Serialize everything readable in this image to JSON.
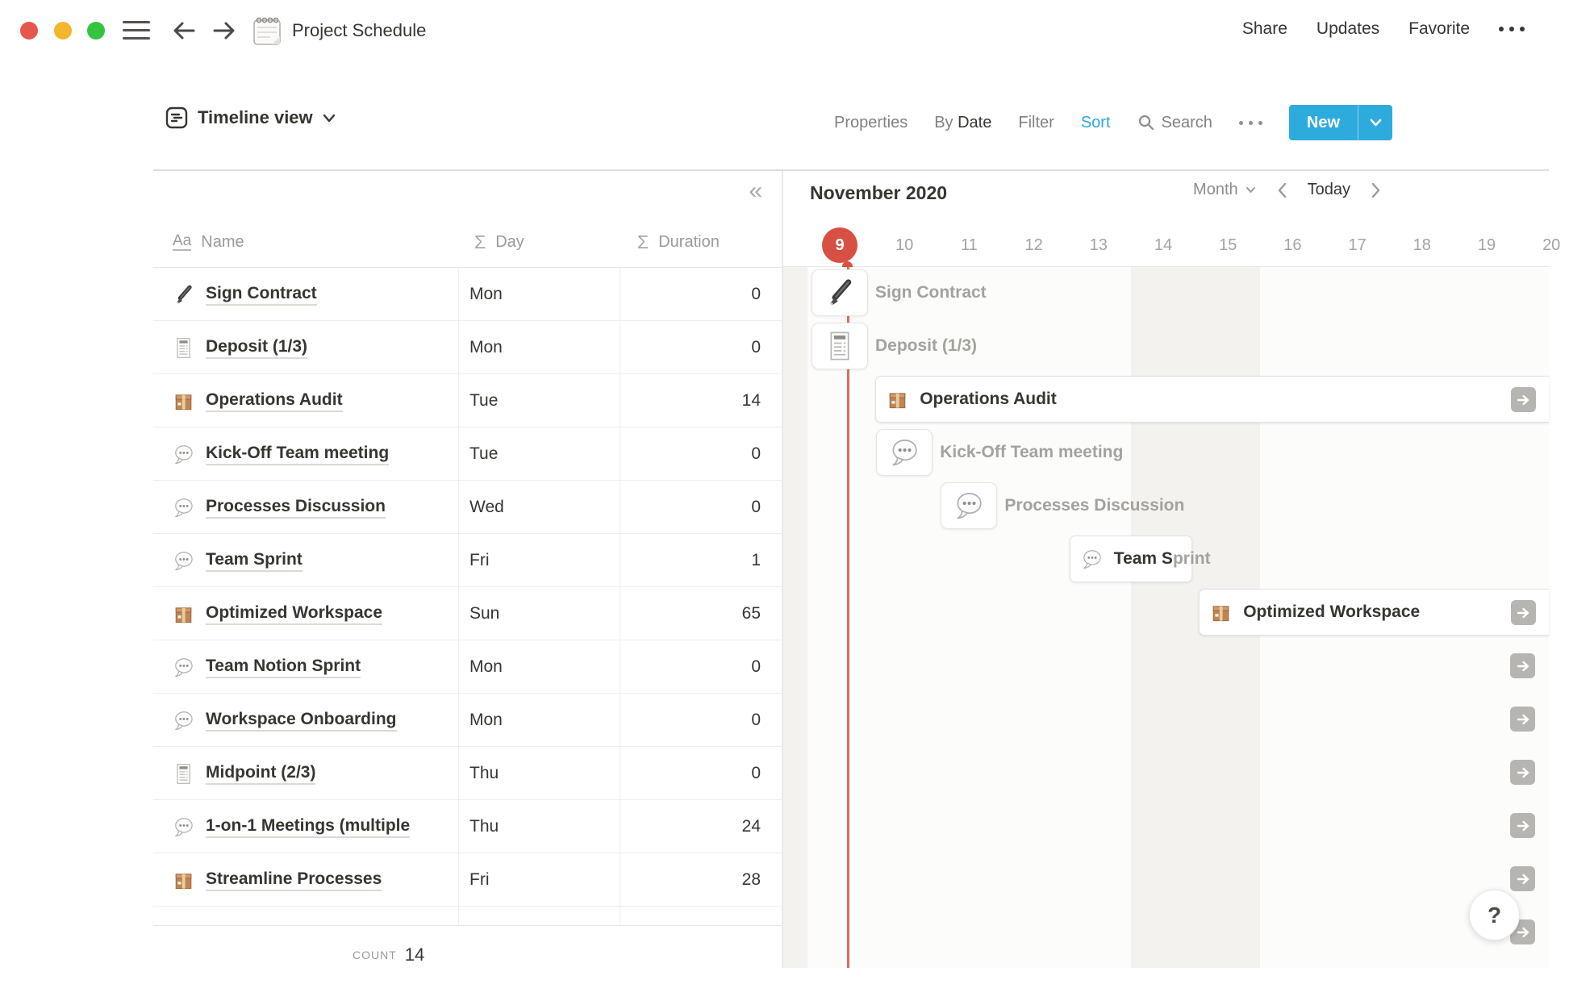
{
  "titlebar": {
    "title": "Project Schedule",
    "share": "Share",
    "updates": "Updates",
    "favorite": "Favorite"
  },
  "toolbar": {
    "view_label": "Timeline view",
    "properties": "Properties",
    "by_label": "By",
    "by_value": "Date",
    "filter": "Filter",
    "sort": "Sort",
    "search": "Search",
    "new_label": "New"
  },
  "table": {
    "collapse_glyph": "«",
    "headers": {
      "name_icon": "Aa",
      "name": "Name",
      "sigma": "Σ",
      "day": "Day",
      "duration": "Duration"
    },
    "rows": [
      {
        "icon": "pen",
        "name": "Sign Contract",
        "day": "Mon",
        "duration": "0"
      },
      {
        "icon": "receipt",
        "name": "Deposit (1/3)",
        "day": "Mon",
        "duration": "0"
      },
      {
        "icon": "package",
        "name": "Operations Audit",
        "day": "Tue",
        "duration": "14"
      },
      {
        "icon": "speech",
        "name": "Kick-Off Team meeting",
        "day": "Tue",
        "duration": "0"
      },
      {
        "icon": "speech",
        "name": "Processes Discussion",
        "day": "Wed",
        "duration": "0"
      },
      {
        "icon": "speech",
        "name": "Team Sprint",
        "day": "Fri",
        "duration": "1"
      },
      {
        "icon": "package",
        "name": "Optimized Workspace",
        "day": "Sun",
        "duration": "65"
      },
      {
        "icon": "speech",
        "name": "Team Notion Sprint",
        "day": "Mon",
        "duration": "0"
      },
      {
        "icon": "speech",
        "name": "Workspace Onboarding",
        "day": "Mon",
        "duration": "0"
      },
      {
        "icon": "receipt",
        "name": "Midpoint (2/3)",
        "day": "Thu",
        "duration": "0"
      },
      {
        "icon": "speech",
        "name": "1-on-1 Meetings (multiple",
        "day": "Thu",
        "duration": "24"
      },
      {
        "icon": "package",
        "name": "Streamline Processes",
        "day": "Fri",
        "duration": "28"
      }
    ],
    "count_label": "COUNT",
    "count_value": "14"
  },
  "timeline": {
    "month_title": "November 2020",
    "zoom_select": "Month",
    "today_button": "Today",
    "days": [
      {
        "n": 9,
        "label": "9",
        "today": true
      },
      {
        "n": 10,
        "label": "10"
      },
      {
        "n": 11,
        "label": "11"
      },
      {
        "n": 12,
        "label": "12"
      },
      {
        "n": 13,
        "label": "13"
      },
      {
        "n": 14,
        "label": "14"
      },
      {
        "n": 15,
        "label": "15"
      },
      {
        "n": 16,
        "label": "16"
      },
      {
        "n": 17,
        "label": "17"
      },
      {
        "n": 18,
        "label": "18"
      },
      {
        "n": 19,
        "label": "19"
      },
      {
        "n": 20,
        "label": "20"
      }
    ],
    "weekend_days": [
      8,
      14,
      15
    ],
    "items": [
      {
        "row": 1,
        "kind": "card",
        "icon": "pen",
        "label": "Sign Contract",
        "day_start": 9
      },
      {
        "row": 2,
        "kind": "card",
        "icon": "receipt",
        "label": "Deposit (1/3)",
        "day_start": 9
      },
      {
        "row": 3,
        "kind": "bar",
        "icon": "package",
        "label": "Operations Audit",
        "day_start": 10,
        "clipped_right": true,
        "has_arrow": true
      },
      {
        "row": 4,
        "kind": "card",
        "icon": "speech",
        "label": "Kick-Off Team meeting",
        "day_start": 10
      },
      {
        "row": 5,
        "kind": "card",
        "icon": "speech",
        "label": "Processes Discussion",
        "day_start": 11
      },
      {
        "row": 6,
        "kind": "bar",
        "icon": "speech",
        "label": "Team Sprint",
        "inside_chars": 6,
        "day_start": 13,
        "day_span": 2
      },
      {
        "row": 7,
        "kind": "bar",
        "icon": "package",
        "label": "Optimized Workspace",
        "day_start": 15,
        "clipped_right": true,
        "has_arrow": true
      },
      {
        "row": 8,
        "kind": "arrow"
      },
      {
        "row": 9,
        "kind": "arrow"
      },
      {
        "row": 10,
        "kind": "arrow"
      },
      {
        "row": 11,
        "kind": "arrow"
      },
      {
        "row": 12,
        "kind": "arrow"
      },
      {
        "row": 13,
        "kind": "arrow"
      }
    ]
  },
  "help": {
    "label": "?"
  }
}
